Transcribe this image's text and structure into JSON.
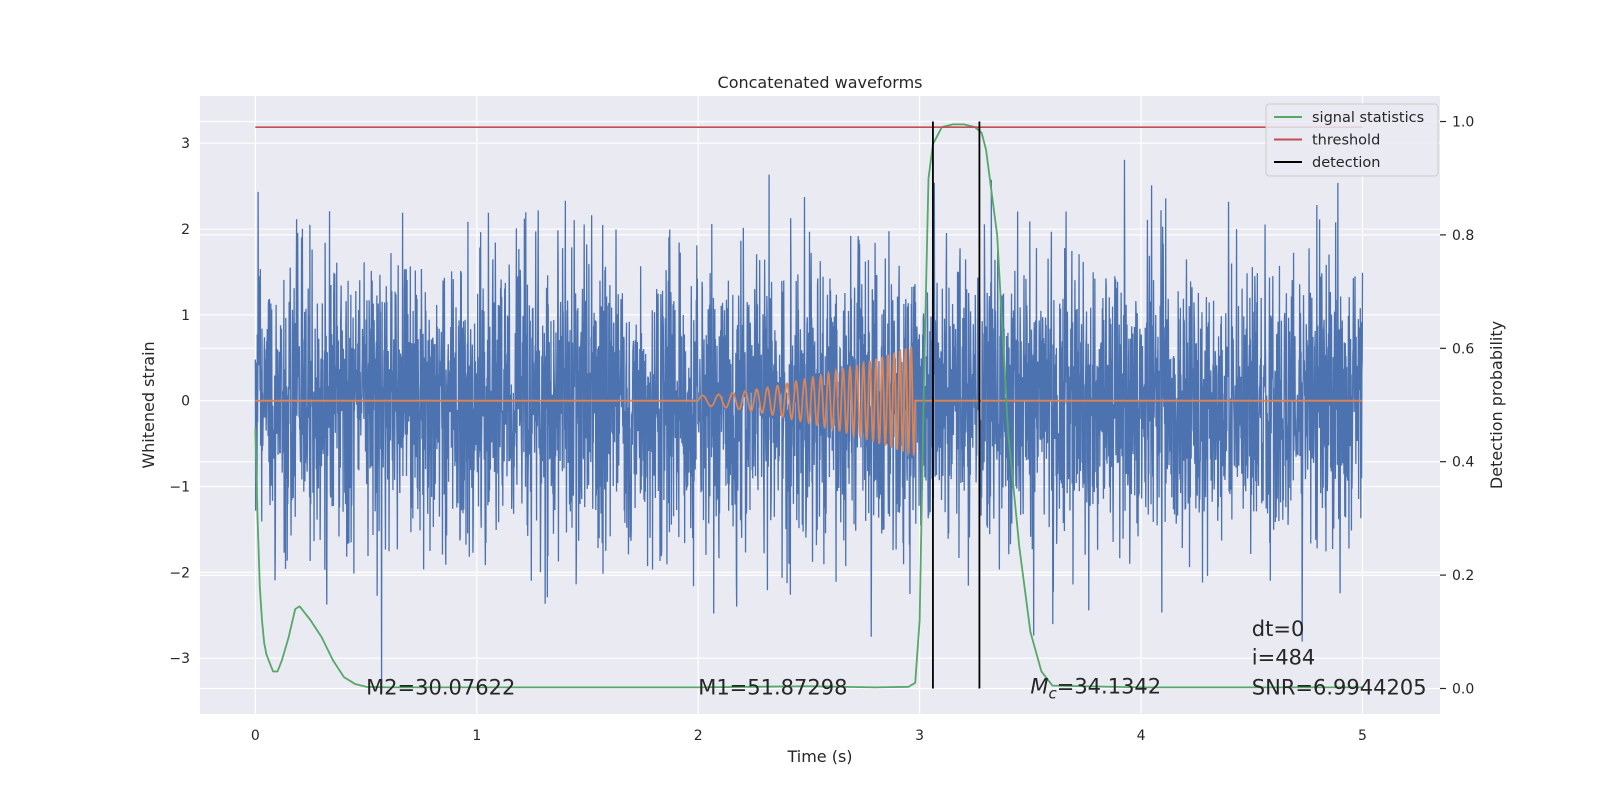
{
  "chart_data": {
    "type": "line",
    "title": "Concatenated waveforms",
    "xlabel": "Time (s)",
    "ylabel_left": "Whitened strain",
    "ylabel_right": "Detection probability",
    "xlim": [
      -0.25,
      5.35
    ],
    "ylim_left": [
      -3.65,
      3.55
    ],
    "ylim_right": [
      -0.045,
      1.045
    ],
    "x_ticks": [
      0,
      1,
      2,
      3,
      4,
      5
    ],
    "x_tick_labels": [
      "0",
      "1",
      "2",
      "3",
      "4",
      "5"
    ],
    "y_left_ticks": [
      -3,
      -2,
      -1,
      0,
      1,
      2,
      3
    ],
    "y_left_tick_labels": [
      "−3",
      "−2",
      "−1",
      "0",
      "1",
      "2",
      "3"
    ],
    "y_right_ticks": [
      0.0,
      0.2,
      0.4,
      0.6,
      0.8,
      1.0
    ],
    "y_right_tick_labels": [
      "0.0",
      "0.2",
      "0.4",
      "0.6",
      "0.8",
      "1.0"
    ],
    "grid": true,
    "legend_position": "top-right",
    "series": [
      {
        "name": "",
        "axis": "left",
        "kind": "noise",
        "color": "#4c72b0",
        "x_range": [
          0,
          5
        ],
        "amplitude_std": 0.85,
        "peak_abs": 3.4
      },
      {
        "name": "",
        "axis": "left",
        "kind": "chirp",
        "color": "#dd8452",
        "x_range": [
          0,
          5
        ],
        "chirp_start": 2.0,
        "chirp_end": 2.98,
        "amplitude_start": 0.06,
        "amplitude_end": 0.65
      },
      {
        "name": "signal statistics",
        "axis": "right",
        "color": "#55a868",
        "x": [
          0.0,
          0.01,
          0.02,
          0.03,
          0.04,
          0.05,
          0.06,
          0.08,
          0.1,
          0.12,
          0.15,
          0.18,
          0.2,
          0.25,
          0.3,
          0.35,
          0.4,
          0.45,
          0.5,
          0.6,
          0.8,
          1.0,
          1.5,
          2.0,
          2.5,
          2.8,
          2.95,
          2.98,
          3.0,
          3.02,
          3.04,
          3.06,
          3.1,
          3.15,
          3.2,
          3.25,
          3.28,
          3.3,
          3.35,
          3.4,
          3.45,
          3.5,
          3.55,
          3.6,
          4.0,
          4.5,
          5.0
        ],
        "y": [
          0.46,
          0.3,
          0.18,
          0.12,
          0.08,
          0.06,
          0.05,
          0.03,
          0.03,
          0.05,
          0.09,
          0.14,
          0.145,
          0.12,
          0.09,
          0.05,
          0.02,
          0.008,
          0.003,
          0.002,
          0.002,
          0.002,
          0.002,
          0.002,
          0.004,
          0.002,
          0.003,
          0.01,
          0.12,
          0.55,
          0.9,
          0.96,
          0.99,
          0.995,
          0.995,
          0.99,
          0.98,
          0.95,
          0.8,
          0.45,
          0.25,
          0.1,
          0.03,
          0.005,
          0.002,
          0.002,
          0.002
        ]
      },
      {
        "name": "threshold",
        "axis": "right",
        "color": "#c44e52",
        "x": [
          0,
          5
        ],
        "y": [
          0.99,
          0.99
        ]
      },
      {
        "name": "detection",
        "axis": "right",
        "color": "#000000",
        "vertical_lines_x": [
          3.06,
          3.27
        ],
        "y_range": [
          0.0,
          1.0
        ]
      }
    ],
    "annotations": [
      {
        "text": "M2=30.07622",
        "x": 0.5,
        "y": -3.33
      },
      {
        "text": "M1=51.87298",
        "x": 2.0,
        "y": -3.33
      },
      {
        "text_main": "M",
        "text_sub": "c",
        "text_rest": "=34.1342",
        "x": 3.5,
        "y": -3.32
      },
      {
        "text": "dt=0",
        "x": 4.5,
        "y": -2.65
      },
      {
        "text": "i=484",
        "x": 4.5,
        "y": -2.98
      },
      {
        "text": "SNR=6.9944205",
        "x": 4.5,
        "y": -3.33
      }
    ]
  }
}
